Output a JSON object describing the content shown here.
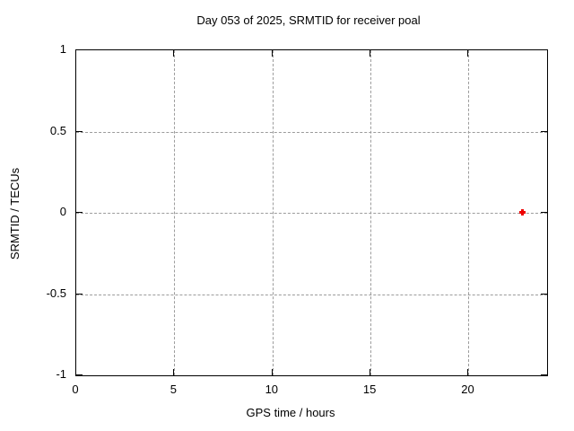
{
  "chart_data": {
    "type": "scatter",
    "title": "Day 053 of 2025, SRMTID for receiver poal",
    "xlabel": "GPS time / hours",
    "ylabel": "SRMTID / TECUs",
    "xlim": [
      0,
      24
    ],
    "ylim": [
      -1,
      1
    ],
    "grid": true,
    "legend": "none",
    "x_ticks": [
      {
        "value": 0,
        "label": "0"
      },
      {
        "value": 5,
        "label": "5"
      },
      {
        "value": 10,
        "label": "10"
      },
      {
        "value": 15,
        "label": "15"
      },
      {
        "value": 20,
        "label": "20"
      }
    ],
    "y_ticks": [
      {
        "value": 1,
        "label": "1"
      },
      {
        "value": 0.5,
        "label": "0.5"
      },
      {
        "value": 0,
        "label": "0"
      },
      {
        "value": -0.5,
        "label": "-0.5"
      },
      {
        "value": -1,
        "label": "-1"
      }
    ],
    "series": [
      {
        "name": "SRMTID",
        "marker": "plus",
        "color": "#ee0000",
        "points": [
          {
            "x": 22.75,
            "y": 0.0
          }
        ]
      }
    ],
    "colors": {
      "frame": "#000000",
      "grid": "#9c9c9c",
      "background": "#ffffff",
      "text": "#000000"
    }
  }
}
